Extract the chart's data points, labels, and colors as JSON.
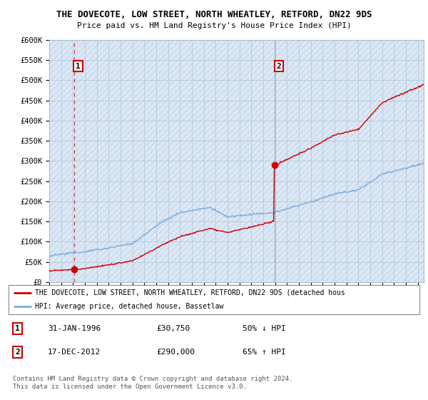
{
  "title": "THE DOVECOTE, LOW STREET, NORTH WHEATLEY, RETFORD, DN22 9DS",
  "subtitle": "Price paid vs. HM Land Registry's House Price Index (HPI)",
  "ylim": [
    0,
    600000
  ],
  "yticks": [
    0,
    50000,
    100000,
    150000,
    200000,
    250000,
    300000,
    350000,
    400000,
    450000,
    500000,
    550000,
    600000
  ],
  "ytick_labels": [
    "£0",
    "£50K",
    "£100K",
    "£150K",
    "£200K",
    "£250K",
    "£300K",
    "£350K",
    "£400K",
    "£450K",
    "£500K",
    "£550K",
    "£600K"
  ],
  "xlim_start": 1994.0,
  "xlim_end": 2025.5,
  "sale1_x": 1996.08,
  "sale1_y": 30750,
  "sale1_label": "1",
  "sale2_x": 2012.96,
  "sale2_y": 290000,
  "sale2_label": "2",
  "hpi_line_color": "#7aaddd",
  "price_line_color": "#cc0000",
  "vline1_color": "#cc0000",
  "vline2_color": "#888888",
  "marker_color": "#cc0000",
  "bg_color": "#dce8f5",
  "hatch_color": "#c8d8ea",
  "grid_color": "#bbccdd",
  "legend_line1": "THE DOVECOTE, LOW STREET, NORTH WHEATLEY, RETFORD, DN22 9DS (detached hous",
  "legend_line2": "HPI: Average price, detached house, Bassetlaw",
  "table_row1": [
    "1",
    "31-JAN-1996",
    "£30,750",
    "50% ↓ HPI"
  ],
  "table_row2": [
    "2",
    "17-DEC-2012",
    "£290,000",
    "65% ↑ HPI"
  ],
  "footnote": "Contains HM Land Registry data © Crown copyright and database right 2024.\nThis data is licensed under the Open Government Licence v3.0."
}
